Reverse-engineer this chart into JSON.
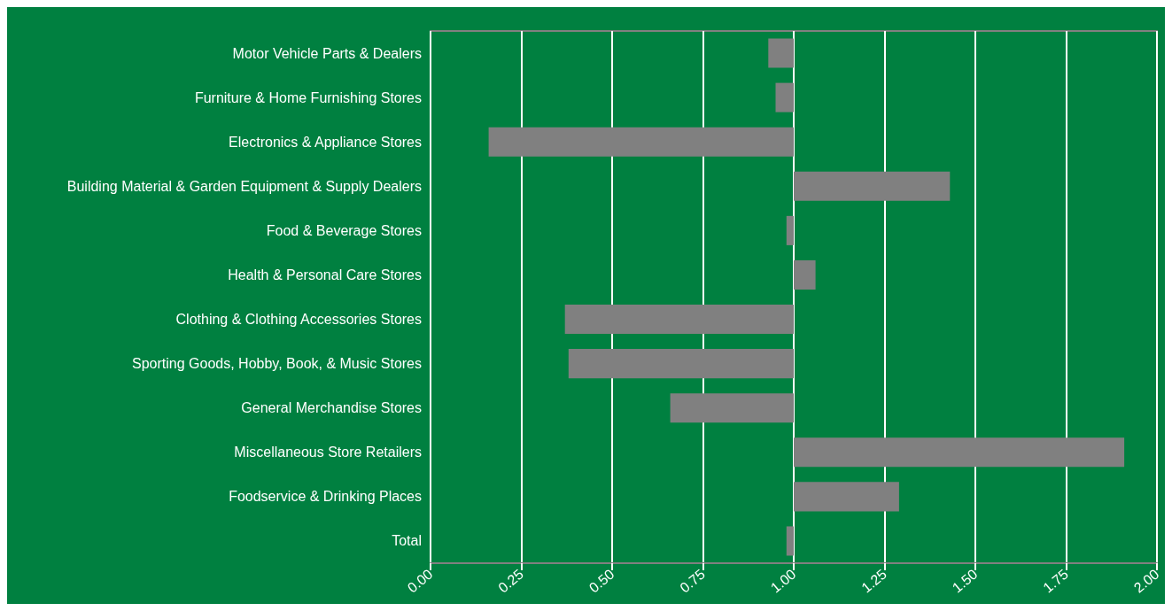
{
  "chart_data": {
    "type": "bar",
    "orientation": "horizontal",
    "categories": [
      "Motor Vehicle Parts & Dealers",
      "Furniture & Home Furnishing Stores",
      "Electronics & Appliance Stores",
      "Building Material & Garden Equipment & Supply Dealers",
      "Food & Beverage Stores",
      "Health & Personal Care Stores",
      "Clothing & Clothing Accessories Stores",
      "Sporting Goods, Hobby, Book, & Music Stores",
      "General Merchandise Stores",
      "Miscellaneous Store Retailers",
      "Foodservice & Drinking Places",
      "Total"
    ],
    "base": [
      1,
      1,
      1,
      1,
      1,
      1,
      1,
      1,
      1,
      1,
      1,
      1
    ],
    "values": [
      -0.07,
      -0.05,
      -0.84,
      0.43,
      -0.02,
      0.06,
      -0.63,
      -0.62,
      -0.34,
      0.91,
      0.29,
      -0.02
    ],
    "color": "#808080",
    "xlim": [
      0,
      2
    ],
    "xticks": [
      {
        "value": 0,
        "label": "0.00"
      },
      {
        "value": 0.25,
        "label": "0.25"
      },
      {
        "value": 0.5,
        "label": "0.50"
      },
      {
        "value": 0.75,
        "label": "0.75"
      },
      {
        "value": 1,
        "label": "1.00"
      },
      {
        "value": 1.25,
        "label": "1.25"
      },
      {
        "value": 1.5,
        "label": "1.50"
      },
      {
        "value": 1.75,
        "label": "1.75"
      },
      {
        "value": 2,
        "label": "2.00"
      }
    ],
    "grid": "x"
  }
}
